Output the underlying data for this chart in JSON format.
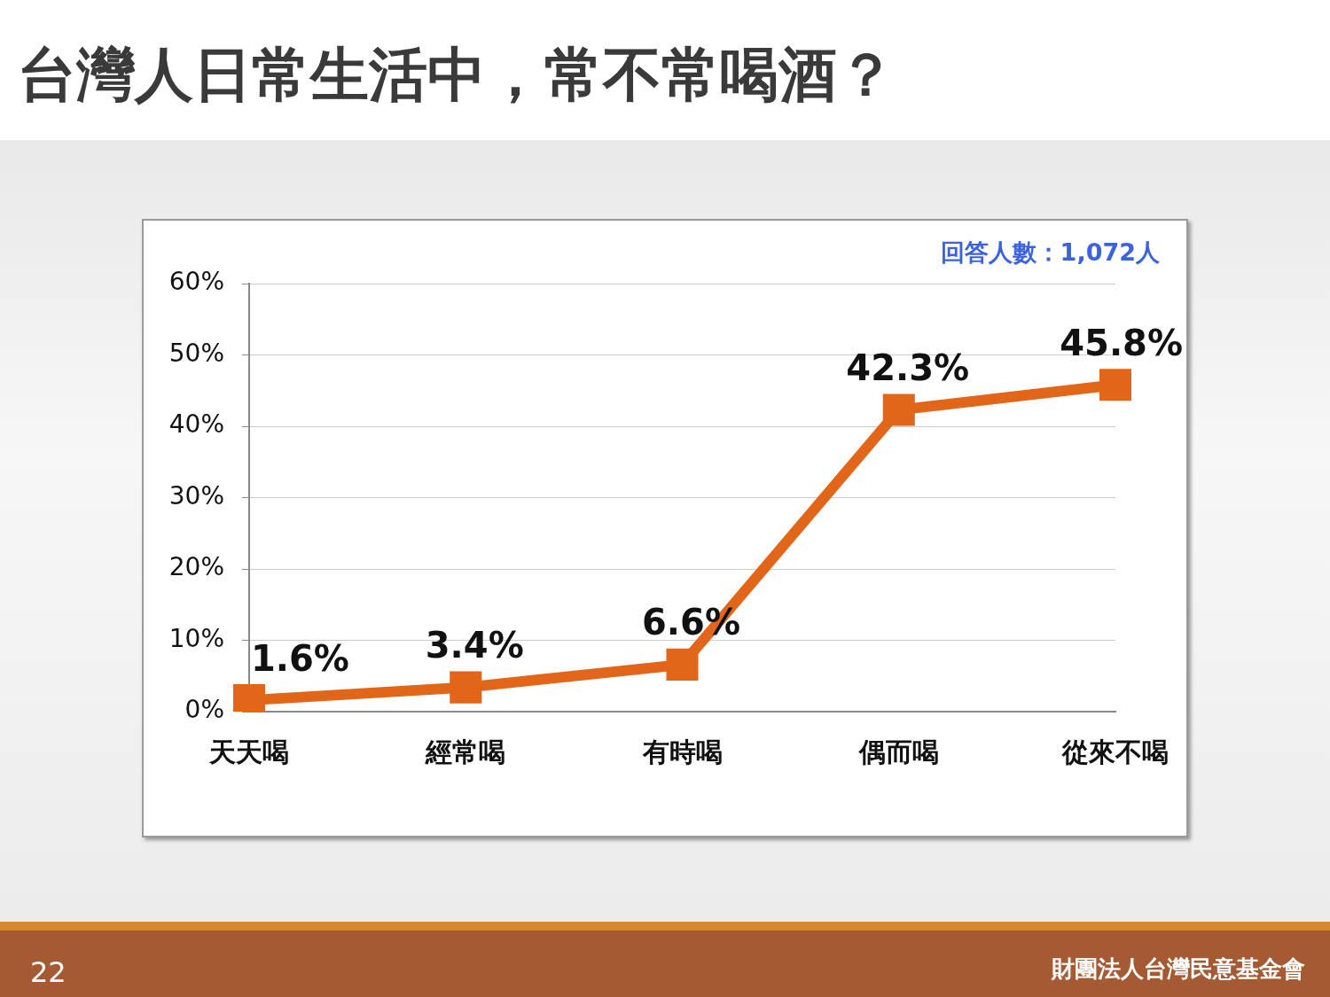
{
  "chart_data": {
    "type": "line",
    "title": "台灣人日常生活中，常不常喝酒？",
    "categories": [
      "天天喝",
      "經常喝",
      "有時喝",
      "偶而喝",
      "從來不喝"
    ],
    "series": [
      {
        "color": "#e2661a",
        "values": [
          1.6,
          3.4,
          6.6,
          42.3,
          45.8
        ],
        "value_labels": [
          "1.6%",
          "3.4%",
          "6.6%",
          "42.3%",
          "45.8%"
        ]
      }
    ],
    "ylim": [
      0,
      60
    ],
    "yticks": [
      {
        "value": 0,
        "label": "0%"
      },
      {
        "value": 10,
        "label": "10%"
      },
      {
        "value": 20,
        "label": "20%"
      },
      {
        "value": 30,
        "label": "30%"
      },
      {
        "value": 40,
        "label": "40%"
      },
      {
        "value": 50,
        "label": "50%"
      },
      {
        "value": 60,
        "label": "60%"
      }
    ],
    "grid": "y",
    "legend": false,
    "marker": "square",
    "line_style": "solid",
    "annotations": [
      "回答人數：1,072人",
      "22",
      "財團法人台灣民意基金會"
    ]
  }
}
